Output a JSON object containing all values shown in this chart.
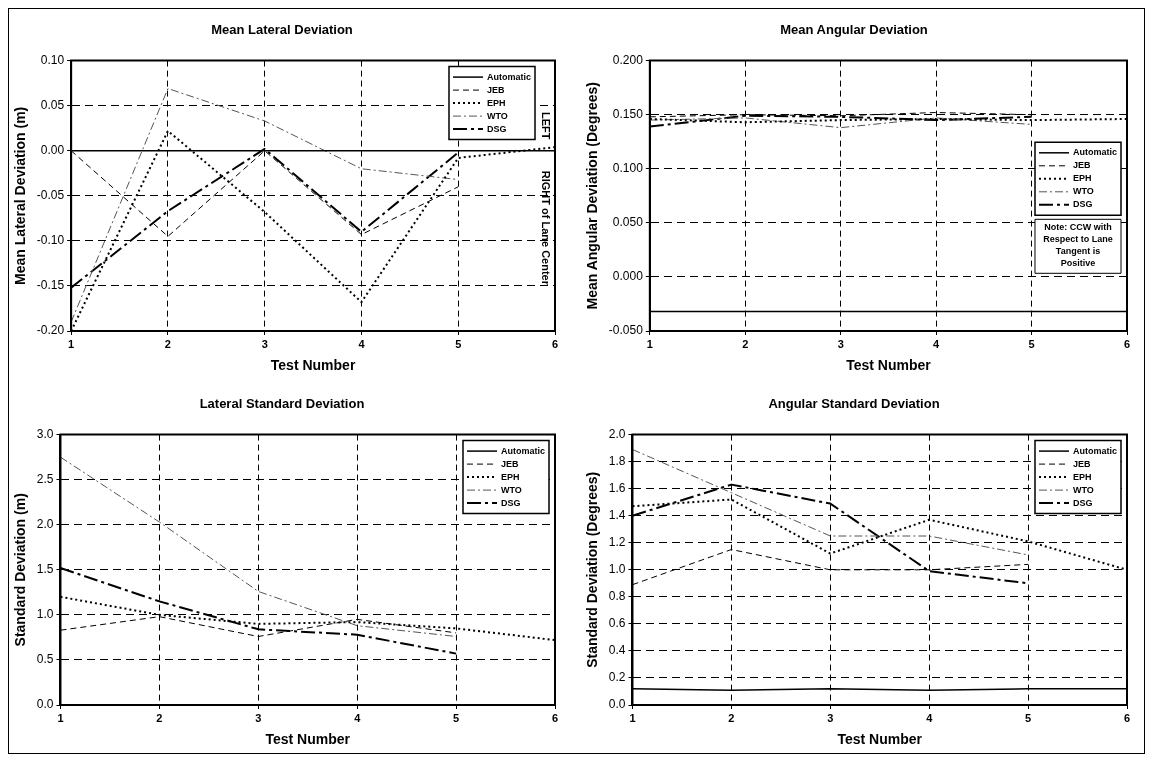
{
  "chart_data": [
    {
      "type": "line",
      "title": "Mean Lateral Deviation",
      "xlabel": "Test Number",
      "ylabel": "Mean Lateral Deviation (m)",
      "x": [
        1,
        2,
        3,
        4,
        5,
        6
      ],
      "xlim": [
        1,
        6
      ],
      "xticks": [
        1,
        2,
        3,
        4,
        5,
        6
      ],
      "ylim": [
        -0.2,
        0.1
      ],
      "yticks": [
        {
          "value": -0.2,
          "label": "-0.20"
        },
        {
          "value": -0.15,
          "label": "-0.15"
        },
        {
          "value": -0.1,
          "label": "-0.10"
        },
        {
          "value": -0.05,
          "label": "-0.05"
        },
        {
          "value": 0,
          "label": "0.00"
        },
        {
          "value": 0.05,
          "label": "0.05"
        },
        {
          "value": 0.1,
          "label": "0.10"
        }
      ],
      "grid": true,
      "legend": "top right",
      "annotations": [
        "LEFT",
        "RIGHT of Lane Center"
      ],
      "series": [
        {
          "name": "Automatic",
          "color": "#000000",
          "line_style": "solid",
          "values": [
            0,
            0,
            0,
            0,
            0,
            0
          ]
        },
        {
          "name": "JEB",
          "color": "#000000",
          "line_style": "dashed",
          "values": [
            0,
            -0.095,
            0,
            -0.093,
            -0.04,
            null
          ]
        },
        {
          "name": "EPH",
          "color": "#000000",
          "line_style": "dotted",
          "values": [
            -0.2,
            0.022,
            -0.068,
            -0.168,
            -0.008,
            0.004
          ]
        },
        {
          "name": "WTO",
          "color": "#555555",
          "line_style": "dashdot",
          "values": [
            -0.19,
            0.069,
            0.033,
            -0.02,
            -0.032,
            null
          ]
        },
        {
          "name": "DSG",
          "color": "#000000",
          "line_style": "longdashdot",
          "values": [
            -0.152,
            -0.067,
            0.002,
            -0.09,
            -0.002,
            null
          ]
        }
      ]
    },
    {
      "type": "line",
      "title": "Mean Angular Deviation",
      "xlabel": "Test Number",
      "ylabel": "Mean Angular Deviation (Degrees)",
      "x": [
        1,
        2,
        3,
        4,
        5,
        6
      ],
      "xlim": [
        1,
        6
      ],
      "xticks": [
        1,
        2,
        3,
        4,
        5,
        6
      ],
      "ylim": [
        -0.05,
        0.2
      ],
      "yticks": [
        {
          "value": -0.05,
          "label": "-0.050"
        },
        {
          "value": 0,
          "label": "0.000"
        },
        {
          "value": 0.05,
          "label": "0.050"
        },
        {
          "value": 0.1,
          "label": "0.100"
        },
        {
          "value": 0.15,
          "label": "0.150"
        },
        {
          "value": 0.2,
          "label": "0.200"
        }
      ],
      "grid": true,
      "legend": "right",
      "annotations": [
        "Note: CCW with Respect to Lane Tangent is Positive"
      ],
      "series": [
        {
          "name": "Automatic",
          "color": "#000000",
          "line_style": "solid",
          "values": [
            -0.032,
            -0.032,
            -0.032,
            -0.032,
            -0.032,
            -0.032
          ]
        },
        {
          "name": "JEB",
          "color": "#000000",
          "line_style": "dashed",
          "values": [
            0.148,
            0.15,
            0.149,
            0.152,
            0.15,
            null
          ]
        },
        {
          "name": "EPH",
          "color": "#000000",
          "line_style": "dotted",
          "values": [
            0.146,
            0.143,
            0.145,
            0.146,
            0.145,
            0.146
          ]
        },
        {
          "name": "WTO",
          "color": "#555555",
          "line_style": "dashdot",
          "values": [
            0.145,
            0.147,
            0.138,
            0.147,
            0.141,
            null
          ]
        },
        {
          "name": "DSG",
          "color": "#000000",
          "line_style": "longdashdot",
          "values": [
            0.139,
            0.149,
            0.148,
            0.145,
            0.148,
            null
          ]
        }
      ]
    },
    {
      "type": "line",
      "title": "Lateral Standard Deviation",
      "xlabel": "Test Number",
      "ylabel": "Standard Deviation (m)",
      "x": [
        1,
        2,
        3,
        4,
        5,
        6
      ],
      "xlim": [
        1,
        6
      ],
      "xticks": [
        1,
        2,
        3,
        4,
        5,
        6
      ],
      "ylim": [
        0,
        3
      ],
      "yticks": [
        {
          "value": 0,
          "label": "0.0"
        },
        0.5,
        {
          "value": 1,
          "label": "1.0"
        },
        1.5,
        {
          "value": 2,
          "label": "2.0"
        },
        2.5,
        {
          "value": 3,
          "label": "3.0"
        }
      ],
      "grid": true,
      "legend": "top right",
      "series": [
        {
          "name": "Automatic",
          "color": "#000000",
          "line_style": "solid",
          "values": [
            null,
            null,
            null,
            null,
            null,
            null
          ]
        },
        {
          "name": "JEB",
          "color": "#000000",
          "line_style": "dashed",
          "values": [
            0.83,
            0.98,
            0.76,
            0.95,
            0.8,
            null
          ]
        },
        {
          "name": "EPH",
          "color": "#000000",
          "line_style": "dotted",
          "values": [
            1.2,
            1.0,
            0.9,
            0.92,
            0.85,
            0.72
          ]
        },
        {
          "name": "WTO",
          "color": "#555555",
          "line_style": "dashdot",
          "values": [
            2.75,
            2.03,
            1.26,
            0.88,
            0.76,
            null
          ]
        },
        {
          "name": "DSG",
          "color": "#000000",
          "line_style": "longdashdot",
          "values": [
            1.52,
            1.15,
            0.84,
            0.78,
            0.57,
            null
          ]
        }
      ]
    },
    {
      "type": "line",
      "title": "Angular Standard Deviation",
      "xlabel": "Test Number",
      "ylabel": "Standard Deviation (Degrees)",
      "x": [
        1,
        2,
        3,
        4,
        5,
        6
      ],
      "xlim": [
        1,
        6
      ],
      "xticks": [
        1,
        2,
        3,
        4,
        5,
        6
      ],
      "ylim": [
        0,
        2
      ],
      "yticks": [
        {
          "value": 0,
          "label": "0.0"
        },
        0.2,
        0.4,
        0.6,
        0.8,
        {
          "value": 1,
          "label": "1.0"
        },
        1.2,
        1.4,
        1.6,
        1.8,
        {
          "value": 2,
          "label": "2.0"
        }
      ],
      "grid": true,
      "legend": "top right",
      "series": [
        {
          "name": "Automatic",
          "color": "#000000",
          "line_style": "solid",
          "values": [
            0.12,
            0.11,
            0.12,
            0.11,
            0.12,
            0.12
          ]
        },
        {
          "name": "JEB",
          "color": "#000000",
          "line_style": "dashed",
          "values": [
            0.89,
            1.15,
            1.0,
            1.0,
            1.04,
            null
          ]
        },
        {
          "name": "EPH",
          "color": "#000000",
          "line_style": "dotted",
          "values": [
            1.47,
            1.52,
            1.12,
            1.37,
            1.21,
            1.0
          ]
        },
        {
          "name": "WTO",
          "color": "#555555",
          "line_style": "dashdot",
          "values": [
            1.89,
            1.57,
            1.25,
            1.25,
            1.11,
            null
          ]
        },
        {
          "name": "DSG",
          "color": "#000000",
          "line_style": "longdashdot",
          "values": [
            1.4,
            1.63,
            1.49,
            0.99,
            0.9,
            null
          ]
        }
      ]
    }
  ]
}
